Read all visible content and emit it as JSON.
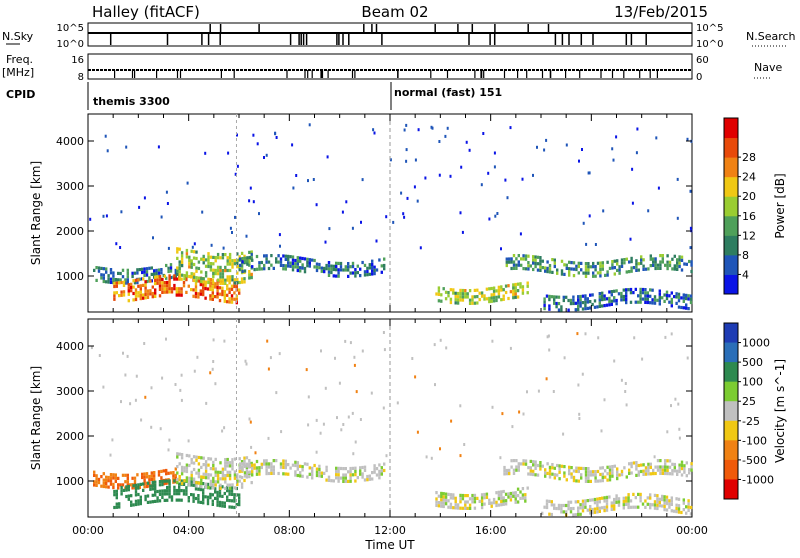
{
  "header": {
    "title": "Halley (fitACF)",
    "beam": "Beam 02",
    "date": "13/Feb/2015"
  },
  "strip_panels": {
    "nsky": {
      "label": "N.Sky",
      "ticks": [
        "10^5",
        "10^0"
      ],
      "right_label": "N.Search",
      "right_ticks": [
        "10^5",
        "10^0"
      ]
    },
    "freq": {
      "label_line1": "Freq.",
      "label_line2": "[MHz]",
      "ticks": [
        "16",
        "8"
      ],
      "right_label": "Nave",
      "right_ticks": [
        "60",
        "0"
      ]
    },
    "cpid": {
      "label": "CPID",
      "modes": [
        "themis 3300",
        "normal (fast) 151"
      ]
    }
  },
  "chart_data": [
    {
      "type": "heatmap",
      "title": "",
      "xlabel": "",
      "ylabel": "Slant Range [km]",
      "xlim": [
        0,
        24
      ],
      "ylim": [
        200,
        4600
      ],
      "x_tick_labels": [
        "00:00",
        "04:00",
        "08:00",
        "12:00",
        "16:00",
        "20:00",
        "00:00"
      ],
      "y_ticks": [
        1000,
        2000,
        3000,
        4000
      ],
      "colorbar": {
        "label": "Power [dB]",
        "ticks": [
          "4",
          "8",
          "12",
          "16",
          "20",
          "24",
          "28"
        ],
        "colors": [
          "#0a14e6",
          "#1f55b8",
          "#2e7d60",
          "#4fa05a",
          "#9acd32",
          "#f0c814",
          "#f08214",
          "#e84a0a",
          "#e00000"
        ]
      },
      "echo_regions": [
        {
          "t_start": 0.2,
          "t_end": 3.5,
          "range_start": 950,
          "range_end": 1250,
          "level_db": 6
        },
        {
          "t_start": 1.0,
          "t_end": 6.0,
          "range_start": 500,
          "range_end": 950,
          "level_db": 22
        },
        {
          "t_start": 3.5,
          "t_end": 6.5,
          "range_start": 900,
          "range_end": 1600,
          "level_db": 14
        },
        {
          "t_start": 6.0,
          "t_end": 11.8,
          "range_start": 1100,
          "range_end": 1400,
          "level_db": 6
        },
        {
          "t_start": 13.8,
          "t_end": 17.5,
          "range_start": 450,
          "range_end": 800,
          "level_db": 14
        },
        {
          "t_start": 16.5,
          "t_end": 24.0,
          "range_start": 1050,
          "range_end": 1400,
          "level_db": 8
        },
        {
          "t_start": 18.0,
          "t_end": 24.0,
          "range_start": 350,
          "range_end": 650,
          "level_db": 5
        }
      ]
    },
    {
      "type": "heatmap",
      "title": "",
      "xlabel": "Time UT",
      "ylabel": "Slant Range [km]",
      "xlim": [
        0,
        24
      ],
      "ylim": [
        200,
        4600
      ],
      "x_tick_labels": [
        "00:00",
        "04:00",
        "08:00",
        "12:00",
        "16:00",
        "20:00",
        "00:00"
      ],
      "y_ticks": [
        1000,
        2000,
        3000,
        4000
      ],
      "colorbar": {
        "label": "Velocity [m s^-1]",
        "ticks": [
          "1000",
          "500",
          "100",
          "25",
          "-25",
          "-100",
          "-500",
          "-1000"
        ],
        "colors": [
          "#1e3cb4",
          "#2a6eb8",
          "#2e8a50",
          "#7ccc32",
          "#c0c0c0",
          "#f0c814",
          "#f08214",
          "#f05a0a",
          "#e00000"
        ]
      },
      "echo_regions": [
        {
          "t_start": 0.2,
          "t_end": 3.5,
          "range_start": 950,
          "range_end": 1250,
          "velocity": -300
        },
        {
          "t_start": 1.0,
          "t_end": 6.0,
          "range_start": 500,
          "range_end": 950,
          "velocity": 120
        },
        {
          "t_start": 3.5,
          "t_end": 6.5,
          "range_start": 900,
          "range_end": 1600,
          "velocity": 0
        },
        {
          "t_start": 6.0,
          "t_end": 11.8,
          "range_start": 1100,
          "range_end": 1400,
          "velocity": 0
        },
        {
          "t_start": 13.8,
          "t_end": 17.5,
          "range_start": 450,
          "range_end": 800,
          "velocity": 0
        },
        {
          "t_start": 16.5,
          "t_end": 24.0,
          "range_start": 1050,
          "range_end": 1400,
          "velocity": 0
        },
        {
          "t_start": 18.0,
          "t_end": 24.0,
          "range_start": 350,
          "range_end": 650,
          "velocity": 0
        }
      ]
    }
  ]
}
